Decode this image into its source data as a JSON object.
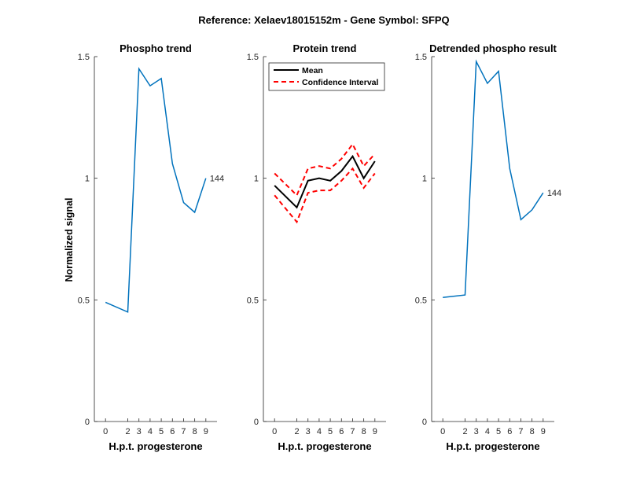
{
  "figure": {
    "title": "Reference:  Xelaev18015152m - Gene Symbol:  SFPQ"
  },
  "chart_data": [
    {
      "type": "line",
      "title": "Phospho trend",
      "xlabel": "H.p.t. progesterone",
      "ylabel": "Normalized signal",
      "x": [
        0,
        2,
        3,
        4,
        5,
        6,
        7,
        8,
        9
      ],
      "xticks": [
        "0",
        "2",
        "3",
        "4",
        "5",
        "6",
        "7",
        "8",
        "9"
      ],
      "ylim": [
        0,
        1.5
      ],
      "yticks": [
        "0",
        "0.5",
        "1",
        "1.5"
      ],
      "series": [
        {
          "values": [
            0.49,
            0.45,
            1.45,
            1.38,
            1.41,
            1.06,
            0.9,
            0.86,
            1.0
          ],
          "color": "#0072BD"
        }
      ],
      "annotation": "144"
    },
    {
      "type": "line",
      "title": "Protein trend",
      "xlabel": "H.p.t. progesterone",
      "ylabel": "",
      "x": [
        0,
        2,
        3,
        4,
        5,
        6,
        7,
        8,
        9
      ],
      "xticks": [
        "0",
        "2",
        "3",
        "4",
        "5",
        "6",
        "7",
        "8",
        "9"
      ],
      "ylim": [
        0,
        1.5
      ],
      "yticks": [
        "0",
        "0.5",
        "1",
        "1.5"
      ],
      "legend": {
        "position": "top-left"
      },
      "series": [
        {
          "name": "Mean",
          "values": [
            0.97,
            0.88,
            0.99,
            1.0,
            0.99,
            1.03,
            1.09,
            1.0,
            1.07
          ],
          "color": "#000000",
          "style": "solid"
        },
        {
          "name": "Confidence Interval",
          "values": [
            1.02,
            0.93,
            1.04,
            1.05,
            1.04,
            1.08,
            1.14,
            1.05,
            1.1
          ],
          "color": "#FF0000",
          "style": "dashed"
        },
        {
          "values": [
            0.93,
            0.82,
            0.94,
            0.95,
            0.95,
            0.99,
            1.04,
            0.96,
            1.02
          ],
          "color": "#FF0000",
          "style": "dashed"
        }
      ]
    },
    {
      "type": "line",
      "title": "Detrended phospho result",
      "xlabel": "H.p.t. progesterone",
      "ylabel": "",
      "x": [
        0,
        2,
        3,
        4,
        5,
        6,
        7,
        8,
        9
      ],
      "xticks": [
        "0",
        "2",
        "3",
        "4",
        "5",
        "6",
        "7",
        "8",
        "9"
      ],
      "ylim": [
        0,
        1.5
      ],
      "yticks": [
        "0",
        "0.5",
        "1",
        "1.5"
      ],
      "series": [
        {
          "values": [
            0.51,
            0.52,
            1.48,
            1.39,
            1.44,
            1.04,
            0.83,
            0.87,
            0.94
          ],
          "color": "#0072BD"
        }
      ],
      "annotation": "144"
    }
  ]
}
